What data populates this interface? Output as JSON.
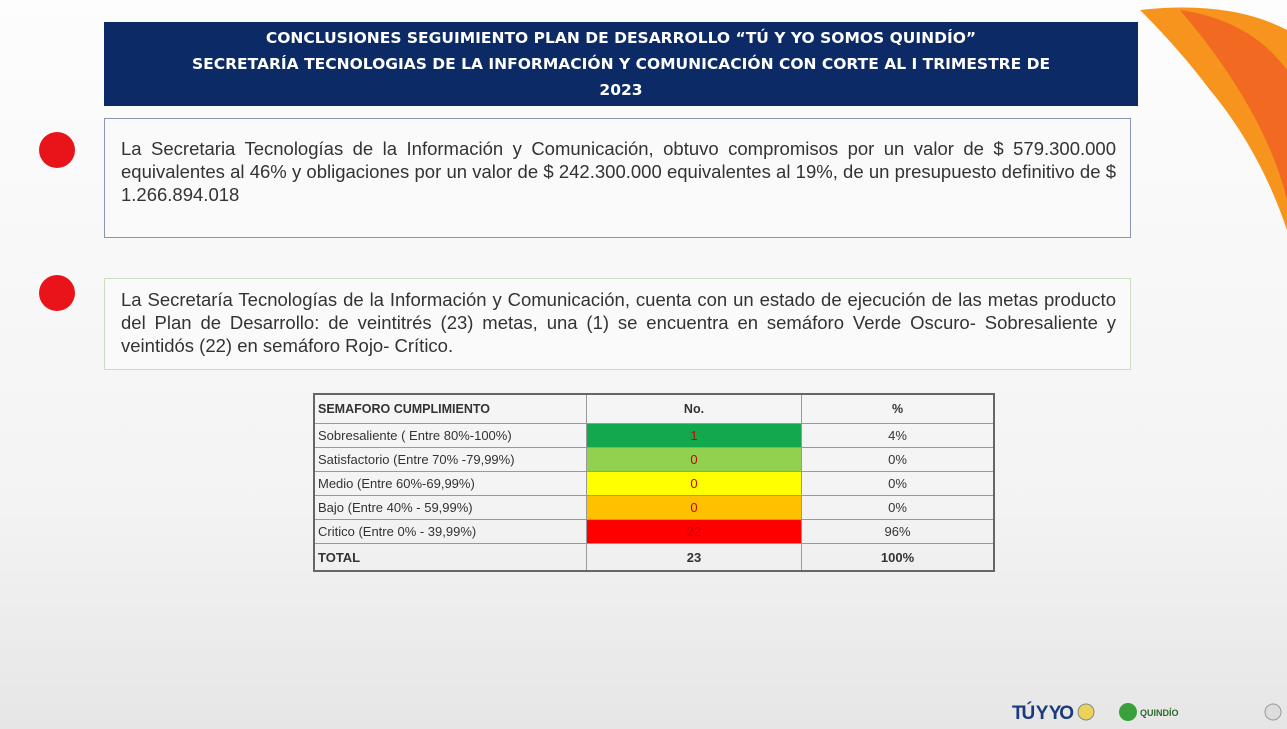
{
  "header": {
    "title": [
      "CONCLUSIONES SEGUIMIENTO PLAN DE DESARROLLO “TÚ Y YO SOMOS QUINDÍO”",
      "SECRETARÍA TECNOLOGIAS DE LA INFORMACIÓN Y COMUNICACIÓN  CON CORTE AL I TRIMESTRE DE",
      "2023"
    ]
  },
  "bullets": [
    {
      "text": "La Secretaria Tecnologías de la Información y Comunicación, obtuvo compromisos por un valor de $ 579.300.000 equivalentes al 46% y obligaciones por un valor de $ 242.300.000 equivalentes al 19%, de un presupuesto definitivo de $ 1.266.894.018"
    },
    {
      "text": "La Secretaría Tecnologías de la Información y Comunicación, cuenta con un estado de ejecución de las metas producto del Plan de Desarrollo: de veintitrés (23) metas, una (1) se encuentra en semáforo Verde Oscuro- Sobresaliente y veintidós (22) en semáforo Rojo- Crítico."
    }
  ],
  "table": {
    "header": [
      "SEMAFORO CUMPLIMIENTO",
      "No.",
      "%"
    ],
    "rows": [
      [
        "Sobresaliente  ( Entre 80%-100%)",
        "1",
        "4%"
      ],
      [
        "Satisfactorio (Entre 70% -79,99%)",
        "0",
        "0%"
      ],
      [
        "Medio (Entre 60%-69,99%)",
        "0",
        "0%"
      ],
      [
        "Bajo (Entre 40% - 59,99%)",
        "0",
        "0%"
      ],
      [
        "Critico (Entre 0% - 39,99%)",
        "22",
        "96%"
      ]
    ],
    "total": [
      "TOTAL",
      "23",
      "100%"
    ]
  },
  "footer": {
    "logo": "TÚ Y YO",
    "logo2": "QUINDÍO"
  }
}
